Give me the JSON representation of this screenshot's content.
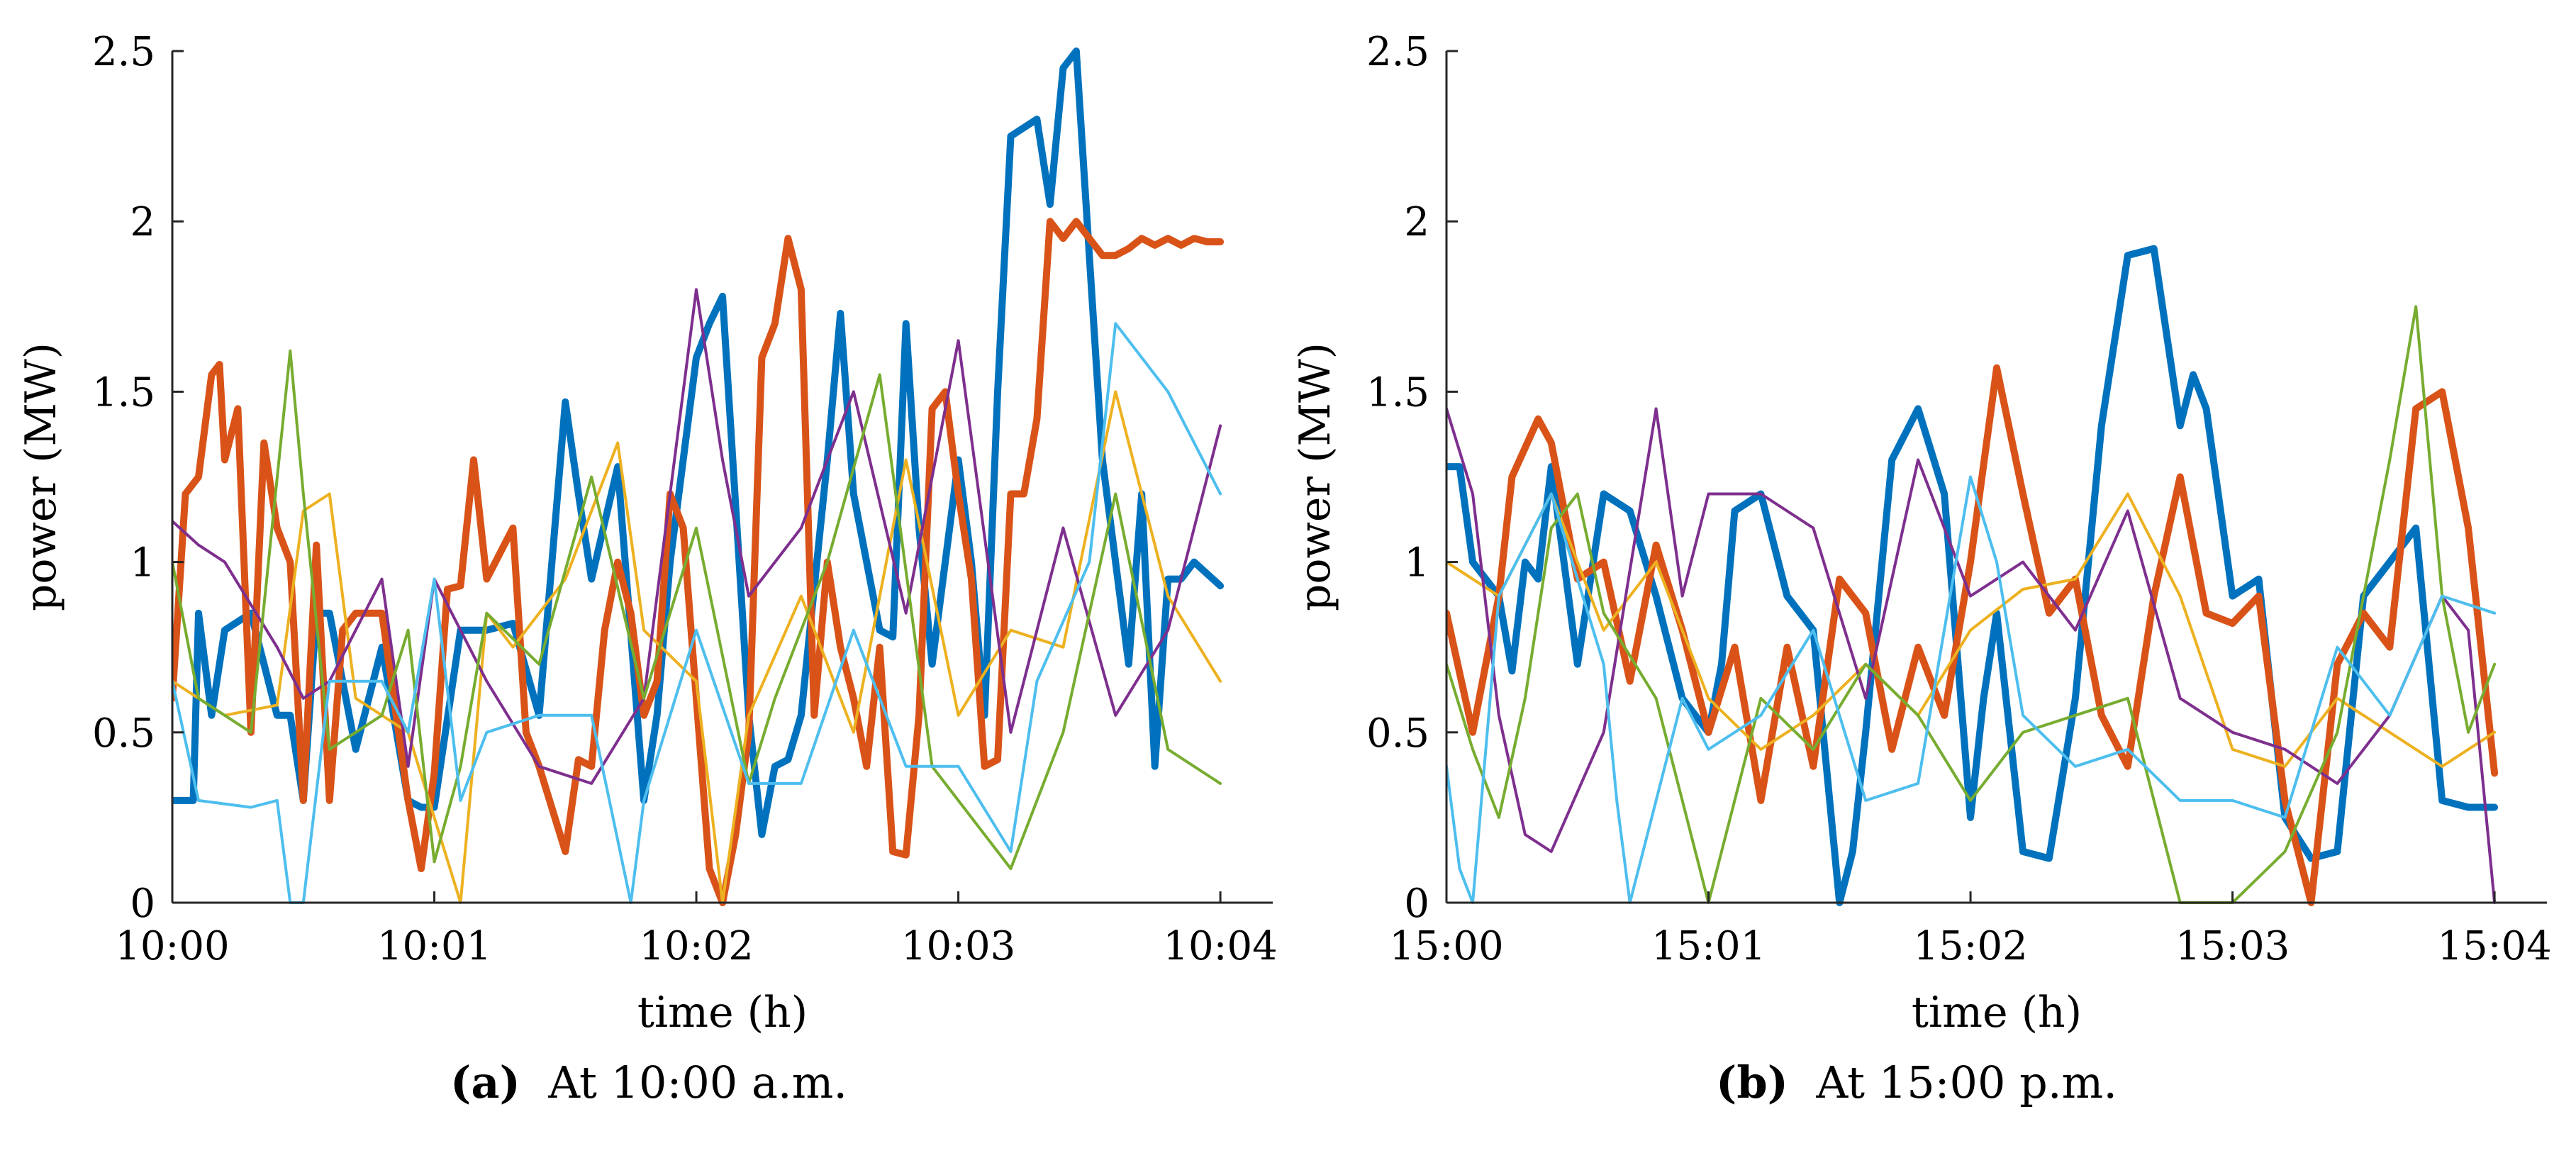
{
  "chart_data": [
    {
      "type": "line",
      "xlabel": "time (h)",
      "ylabel": "power (MW)",
      "ylim": [
        0,
        2.5
      ],
      "xlim": [
        0,
        4.2
      ],
      "x_ticks": [
        0,
        1,
        2,
        3,
        4
      ],
      "x_tick_labels": [
        "10:00",
        "10:01",
        "10:02",
        "10:03",
        "10:04"
      ],
      "y_ticks": [
        0,
        0.5,
        1,
        1.5,
        2,
        2.5
      ],
      "y_tick_labels": [
        "0",
        "0.5",
        "1",
        "1.5",
        "2",
        "2.5"
      ],
      "caption": {
        "label": "(a)",
        "text": "At 10:00 a.m."
      },
      "series": [
        {
          "name": "series-1",
          "color": "#0072BD",
          "width": 10,
          "x": [
            0,
            0.08,
            0.1,
            0.15,
            0.2,
            0.3,
            0.4,
            0.45,
            0.5,
            0.55,
            0.6,
            0.7,
            0.8,
            0.9,
            0.95,
            1.0,
            1.1,
            1.2,
            1.3,
            1.4,
            1.5,
            1.55,
            1.6,
            1.7,
            1.8,
            1.85,
            1.9,
            2.0,
            2.05,
            2.1,
            2.2,
            2.25,
            2.3,
            2.35,
            2.4,
            2.5,
            2.55,
            2.6,
            2.7,
            2.75,
            2.8,
            2.85,
            2.9,
            3.0,
            3.05,
            3.1,
            3.15,
            3.2,
            3.3,
            3.35,
            3.4,
            3.45,
            3.5,
            3.55,
            3.6,
            3.65,
            3.7,
            3.75,
            3.8,
            3.85,
            3.9,
            4.0
          ],
          "values": [
            0.3,
            0.3,
            0.85,
            0.55,
            0.8,
            0.85,
            0.55,
            0.55,
            0.3,
            0.85,
            0.85,
            0.45,
            0.75,
            0.3,
            0.28,
            0.28,
            0.8,
            0.8,
            0.82,
            0.55,
            1.47,
            1.2,
            0.95,
            1.28,
            0.3,
            0.55,
            1.0,
            1.6,
            1.7,
            1.78,
            0.55,
            0.2,
            0.4,
            0.42,
            0.55,
            1.3,
            1.73,
            1.2,
            0.8,
            0.78,
            1.7,
            1.1,
            0.7,
            1.3,
            1.0,
            0.55,
            1.5,
            2.25,
            2.3,
            2.05,
            2.45,
            2.5,
            1.9,
            1.3,
            1.0,
            0.7,
            1.2,
            0.4,
            0.95,
            0.95,
            1.0,
            0.93
          ]
        },
        {
          "name": "series-2",
          "color": "#D95319",
          "width": 10,
          "x": [
            0,
            0.05,
            0.1,
            0.15,
            0.18,
            0.2,
            0.25,
            0.3,
            0.35,
            0.4,
            0.45,
            0.5,
            0.55,
            0.6,
            0.65,
            0.7,
            0.8,
            0.9,
            0.95,
            1.0,
            1.05,
            1.1,
            1.15,
            1.2,
            1.3,
            1.35,
            1.4,
            1.5,
            1.55,
            1.6,
            1.65,
            1.7,
            1.75,
            1.8,
            1.85,
            1.9,
            1.95,
            2.0,
            2.05,
            2.1,
            2.15,
            2.2,
            2.25,
            2.3,
            2.35,
            2.4,
            2.45,
            2.5,
            2.55,
            2.6,
            2.65,
            2.7,
            2.75,
            2.8,
            2.85,
            2.9,
            2.95,
            3.0,
            3.05,
            3.1,
            3.15,
            3.2,
            3.25,
            3.3,
            3.35,
            3.4,
            3.45,
            3.5,
            3.55,
            3.6,
            3.65,
            3.7,
            3.75,
            3.8,
            3.85,
            3.9,
            3.95,
            4.0
          ],
          "values": [
            0.6,
            1.2,
            1.25,
            1.55,
            1.58,
            1.3,
            1.45,
            0.5,
            1.35,
            1.1,
            1.0,
            0.3,
            1.05,
            0.3,
            0.8,
            0.85,
            0.85,
            0.3,
            0.1,
            0.38,
            0.92,
            0.93,
            1.3,
            0.95,
            1.1,
            0.5,
            0.4,
            0.15,
            0.42,
            0.4,
            0.8,
            1.0,
            0.85,
            0.55,
            0.65,
            1.2,
            1.1,
            0.6,
            0.1,
            0.0,
            0.2,
            0.5,
            1.6,
            1.7,
            1.95,
            1.8,
            0.55,
            1.0,
            0.75,
            0.6,
            0.4,
            0.75,
            0.15,
            0.14,
            0.55,
            1.45,
            1.5,
            1.2,
            0.95,
            0.4,
            0.42,
            1.2,
            1.2,
            1.42,
            2.0,
            1.95,
            2.0,
            1.95,
            1.9,
            1.9,
            1.92,
            1.95,
            1.93,
            1.95,
            1.93,
            1.95,
            1.94,
            1.94
          ]
        },
        {
          "name": "series-3",
          "color": "#EDB120",
          "width": 4,
          "x": [
            0,
            0.2,
            0.4,
            0.5,
            0.6,
            0.7,
            0.9,
            1.0,
            1.1,
            1.2,
            1.3,
            1.5,
            1.7,
            1.8,
            2.0,
            2.1,
            2.2,
            2.4,
            2.6,
            2.8,
            3.0,
            3.2,
            3.4,
            3.6,
            3.8,
            4.0
          ],
          "values": [
            0.65,
            0.55,
            0.58,
            1.15,
            1.2,
            0.6,
            0.5,
            0.25,
            0.0,
            0.85,
            0.75,
            0.95,
            1.35,
            0.8,
            0.65,
            0.0,
            0.55,
            0.9,
            0.5,
            1.3,
            0.55,
            0.8,
            0.75,
            1.5,
            0.9,
            0.65
          ]
        },
        {
          "name": "series-4",
          "color": "#7E2F8E",
          "width": 4,
          "x": [
            0,
            0.1,
            0.2,
            0.4,
            0.5,
            0.6,
            0.8,
            0.9,
            1.0,
            1.2,
            1.4,
            1.6,
            1.8,
            2.0,
            2.1,
            2.2,
            2.4,
            2.6,
            2.8,
            3.0,
            3.2,
            3.4,
            3.6,
            3.8,
            4.0
          ],
          "values": [
            1.12,
            1.05,
            1.0,
            0.75,
            0.6,
            0.65,
            0.95,
            0.4,
            0.95,
            0.65,
            0.4,
            0.35,
            0.6,
            1.8,
            1.3,
            0.9,
            1.1,
            1.5,
            0.85,
            1.65,
            0.5,
            1.1,
            0.55,
            0.8,
            1.4
          ]
        },
        {
          "name": "series-5",
          "color": "#77AC30",
          "width": 4,
          "x": [
            0,
            0.1,
            0.2,
            0.3,
            0.45,
            0.5,
            0.6,
            0.8,
            0.9,
            1.0,
            1.1,
            1.2,
            1.4,
            1.6,
            1.8,
            2.0,
            2.2,
            2.3,
            2.5,
            2.7,
            2.9,
            3.0,
            3.2,
            3.4,
            3.6,
            3.8,
            4.0
          ],
          "values": [
            1.0,
            0.6,
            0.55,
            0.5,
            1.62,
            1.2,
            0.45,
            0.55,
            0.8,
            0.12,
            0.4,
            0.85,
            0.7,
            1.25,
            0.6,
            1.1,
            0.35,
            0.6,
            1.0,
            1.55,
            0.4,
            0.3,
            0.1,
            0.5,
            1.2,
            0.45,
            0.35
          ]
        },
        {
          "name": "series-6",
          "color": "#4DBEEE",
          "width": 4,
          "x": [
            0,
            0.1,
            0.3,
            0.4,
            0.45,
            0.5,
            0.6,
            0.8,
            0.9,
            1.0,
            1.1,
            1.2,
            1.4,
            1.6,
            1.75,
            1.8,
            2.0,
            2.2,
            2.4,
            2.6,
            2.8,
            3.0,
            3.2,
            3.3,
            3.5,
            3.6,
            3.8,
            4.0
          ],
          "values": [
            0.65,
            0.3,
            0.28,
            0.3,
            0.0,
            0.0,
            0.65,
            0.65,
            0.5,
            0.95,
            0.3,
            0.5,
            0.55,
            0.55,
            0.0,
            0.3,
            0.8,
            0.35,
            0.35,
            0.8,
            0.4,
            0.4,
            0.15,
            0.65,
            1.0,
            1.7,
            1.5,
            1.2
          ]
        }
      ]
    },
    {
      "type": "line",
      "xlabel": "time (h)",
      "ylabel": "power (MW)",
      "ylim": [
        0,
        2.5
      ],
      "xlim": [
        0,
        4.2
      ],
      "x_ticks": [
        0,
        1,
        2,
        3,
        4
      ],
      "x_tick_labels": [
        "15:00",
        "15:01",
        "15:02",
        "15:03",
        "15:04"
      ],
      "y_ticks": [
        0,
        0.5,
        1,
        1.5,
        2,
        2.5
      ],
      "y_tick_labels": [
        "0",
        "0.5",
        "1",
        "1.5",
        "2",
        "2.5"
      ],
      "caption": {
        "label": "(b)",
        "text": "At 15:00 p.m."
      },
      "series": [
        {
          "name": "series-1",
          "color": "#0072BD",
          "width": 10,
          "x": [
            0,
            0.05,
            0.1,
            0.2,
            0.25,
            0.3,
            0.35,
            0.4,
            0.5,
            0.6,
            0.7,
            0.8,
            0.9,
            1.0,
            1.05,
            1.1,
            1.2,
            1.3,
            1.4,
            1.5,
            1.55,
            1.6,
            1.7,
            1.8,
            1.9,
            2.0,
            2.05,
            2.1,
            2.2,
            2.3,
            2.4,
            2.5,
            2.6,
            2.7,
            2.8,
            2.85,
            2.9,
            3.0,
            3.1,
            3.2,
            3.3,
            3.4,
            3.5,
            3.6,
            3.7,
            3.8,
            3.9,
            4.0
          ],
          "values": [
            1.28,
            1.28,
            1.0,
            0.9,
            0.68,
            1.0,
            0.95,
            1.28,
            0.7,
            1.2,
            1.15,
            0.9,
            0.6,
            0.5,
            0.7,
            1.15,
            1.2,
            0.9,
            0.8,
            0.0,
            0.15,
            0.5,
            1.3,
            1.45,
            1.2,
            0.25,
            0.6,
            0.85,
            0.15,
            0.13,
            0.6,
            1.4,
            1.9,
            1.92,
            1.4,
            1.55,
            1.45,
            0.9,
            0.95,
            0.25,
            0.13,
            0.15,
            0.9,
            1.0,
            1.1,
            0.3,
            0.28,
            0.28
          ]
        },
        {
          "name": "series-2",
          "color": "#D95319",
          "width": 10,
          "x": [
            0,
            0.1,
            0.2,
            0.25,
            0.35,
            0.4,
            0.5,
            0.6,
            0.7,
            0.8,
            0.9,
            1.0,
            1.1,
            1.2,
            1.3,
            1.4,
            1.5,
            1.6,
            1.7,
            1.8,
            1.9,
            2.0,
            2.1,
            2.2,
            2.3,
            2.4,
            2.5,
            2.6,
            2.7,
            2.8,
            2.9,
            3.0,
            3.1,
            3.2,
            3.3,
            3.4,
            3.5,
            3.6,
            3.7,
            3.8,
            3.9,
            4.0
          ],
          "values": [
            0.85,
            0.5,
            0.9,
            1.25,
            1.42,
            1.35,
            0.95,
            1.0,
            0.65,
            1.05,
            0.8,
            0.5,
            0.75,
            0.3,
            0.75,
            0.4,
            0.95,
            0.85,
            0.45,
            0.75,
            0.55,
            1.0,
            1.57,
            1.2,
            0.85,
            0.95,
            0.55,
            0.4,
            0.9,
            1.25,
            0.85,
            0.82,
            0.9,
            0.3,
            0.0,
            0.7,
            0.85,
            0.75,
            1.45,
            1.5,
            1.1,
            0.38
          ]
        },
        {
          "name": "series-3",
          "color": "#EDB120",
          "width": 4,
          "x": [
            0,
            0.2,
            0.4,
            0.6,
            0.8,
            1.0,
            1.2,
            1.4,
            1.6,
            1.8,
            2.0,
            2.2,
            2.4,
            2.6,
            2.8,
            3.0,
            3.2,
            3.4,
            3.6,
            3.8,
            4.0
          ],
          "values": [
            1.0,
            0.9,
            1.2,
            0.8,
            1.0,
            0.6,
            0.45,
            0.55,
            0.7,
            0.55,
            0.8,
            0.92,
            0.95,
            1.2,
            0.9,
            0.45,
            0.4,
            0.6,
            0.5,
            0.4,
            0.5
          ]
        },
        {
          "name": "series-4",
          "color": "#7E2F8E",
          "width": 4,
          "x": [
            0,
            0.1,
            0.2,
            0.3,
            0.4,
            0.6,
            0.8,
            0.9,
            1.0,
            1.2,
            1.4,
            1.6,
            1.8,
            2.0,
            2.2,
            2.4,
            2.6,
            2.8,
            3.0,
            3.2,
            3.4,
            3.6,
            3.8,
            3.9,
            4.0
          ],
          "values": [
            1.45,
            1.2,
            0.55,
            0.2,
            0.15,
            0.5,
            1.45,
            0.9,
            1.2,
            1.2,
            1.1,
            0.6,
            1.3,
            0.9,
            1.0,
            0.8,
            1.15,
            0.6,
            0.5,
            0.45,
            0.35,
            0.55,
            0.9,
            0.8,
            0.0
          ]
        },
        {
          "name": "series-5",
          "color": "#77AC30",
          "width": 4,
          "x": [
            0,
            0.1,
            0.2,
            0.3,
            0.4,
            0.5,
            0.6,
            0.8,
            0.9,
            1.0,
            1.2,
            1.4,
            1.6,
            1.8,
            2.0,
            2.2,
            2.4,
            2.6,
            2.8,
            3.0,
            3.2,
            3.4,
            3.6,
            3.7,
            3.8,
            3.9,
            4.0
          ],
          "values": [
            0.7,
            0.45,
            0.25,
            0.6,
            1.1,
            1.2,
            0.85,
            0.6,
            0.3,
            0.0,
            0.6,
            0.45,
            0.7,
            0.55,
            0.3,
            0.5,
            0.55,
            0.6,
            0.0,
            0.0,
            0.15,
            0.5,
            1.3,
            1.75,
            0.9,
            0.5,
            0.7
          ]
        },
        {
          "name": "series-6",
          "color": "#4DBEEE",
          "width": 4,
          "x": [
            0,
            0.05,
            0.1,
            0.2,
            0.4,
            0.6,
            0.65,
            0.7,
            0.9,
            1.0,
            1.2,
            1.4,
            1.6,
            1.8,
            2.0,
            2.1,
            2.2,
            2.4,
            2.6,
            2.8,
            3.0,
            3.2,
            3.4,
            3.6,
            3.8,
            4.0
          ],
          "values": [
            0.4,
            0.1,
            0.0,
            0.9,
            1.2,
            0.7,
            0.3,
            0.0,
            0.6,
            0.45,
            0.55,
            0.8,
            0.3,
            0.35,
            1.25,
            1.0,
            0.55,
            0.4,
            0.45,
            0.3,
            0.3,
            0.25,
            0.75,
            0.55,
            0.9,
            0.85
          ]
        }
      ]
    }
  ]
}
